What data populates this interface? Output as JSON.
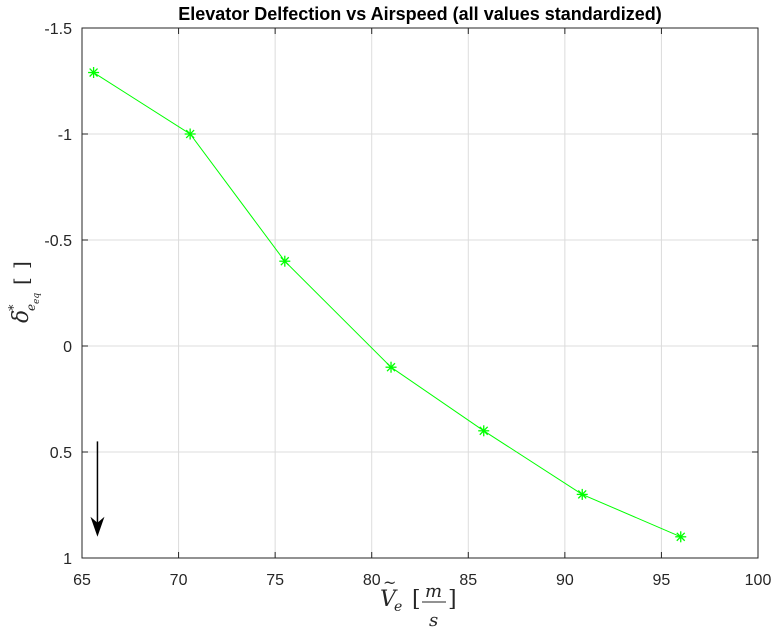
{
  "chart_data": {
    "type": "line",
    "title": "Elevator Delfection vs Airspeed (all values standardized)",
    "xlabel": "Ṽe [m/s]",
    "ylabel": "δ*eeq [ ]",
    "x": [
      65.6,
      70.6,
      75.5,
      81.0,
      85.8,
      90.9,
      96.0
    ],
    "series": [
      {
        "values": [
          -1.29,
          -1.0,
          -0.4,
          0.1,
          0.4,
          0.7,
          0.9
        ]
      }
    ],
    "xlim": [
      65,
      100
    ],
    "ylim": [
      -1.5,
      1
    ],
    "y_reversed": true,
    "xticks": [
      65,
      70,
      75,
      80,
      85,
      90,
      95,
      100
    ],
    "xtick_labels": [
      "65",
      "70",
      "75",
      "80",
      "85",
      "90",
      "95",
      "100"
    ],
    "yticks": [
      -1.5,
      -1,
      -0.5,
      0,
      0.5,
      1
    ],
    "ytick_labels": [
      "-1.5",
      "-1",
      "-0.5",
      "0",
      "0.5",
      "1"
    ],
    "grid": true,
    "marker": "asterisk",
    "line_color": "#00ff00",
    "annotation": {
      "type": "arrow",
      "direction": "down",
      "x": 65.8,
      "y_from": 0.45,
      "y_to": 0.9,
      "color": "#000000"
    }
  }
}
